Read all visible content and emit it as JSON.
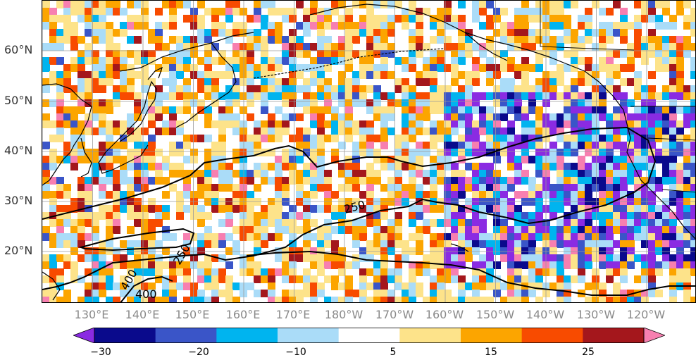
{
  "map": {
    "lat_labels": [
      "60°N",
      "50°N",
      "40°N",
      "30°N",
      "20°N"
    ],
    "lon_labels": [
      "130°E",
      "140°E",
      "150°E",
      "160°E",
      "170°E",
      "180°W",
      "170°W",
      "160°W",
      "150°W",
      "140°W",
      "130°W",
      "120°W"
    ],
    "contour_labels": [
      "250",
      "250",
      "400",
      "400"
    ]
  },
  "colorbar": {
    "colors": [
      "#8a2be2",
      "#0a0a8c",
      "#3a55c8",
      "#00b4ef",
      "#aadcf8",
      "#ffffff",
      "#fde38a",
      "#fca500",
      "#f84b00",
      "#a4171c",
      "#f77fb0"
    ],
    "ticks": [
      "−30",
      "−20",
      "−10",
      "5",
      "15",
      "25"
    ]
  }
}
